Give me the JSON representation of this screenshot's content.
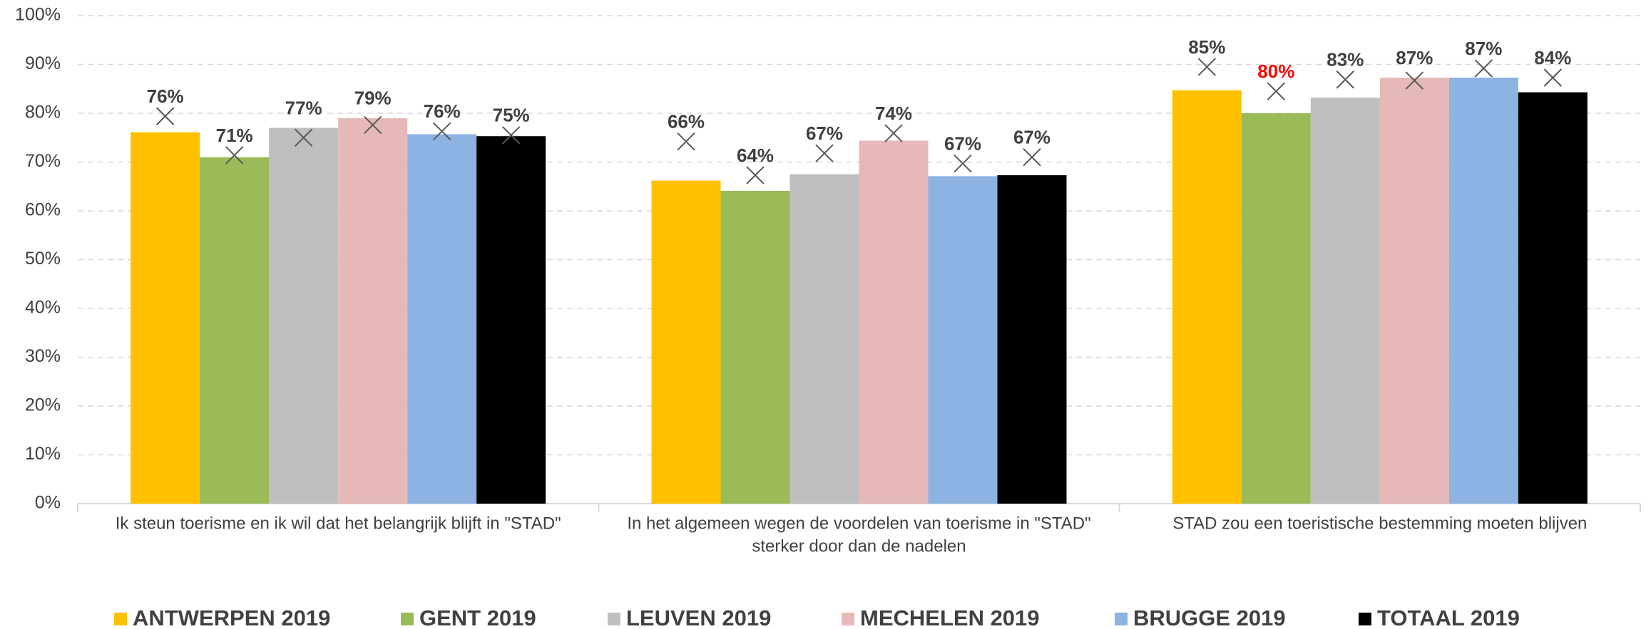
{
  "chart_data": {
    "type": "bar",
    "categories": [
      [
        "Ik steun toerisme en ik wil dat het belangrijk blijft in \"STAD\""
      ],
      [
        "In het algemeen wegen de voordelen van toerisme in \"STAD\"",
        "sterker door dan de nadelen"
      ],
      [
        "STAD zou een toeristische bestemming moeten blijven"
      ]
    ],
    "series": [
      {
        "name": "ANTWERPEN 2019",
        "color": "#ffc000",
        "values": [
          76.1,
          66.2,
          84.7
        ],
        "value_labels": [
          "76%",
          "66%",
          "85%"
        ],
        "label_colors": [
          "#404040",
          "#404040",
          "#404040"
        ],
        "marker_values": [
          79.4,
          74.2,
          89.5
        ]
      },
      {
        "name": "GENT 2019",
        "color": "#9bbb59",
        "values": [
          71,
          64.1,
          80
        ],
        "value_labels": [
          "71%",
          "64%",
          "80%"
        ],
        "label_colors": [
          "#404040",
          "#404040",
          "#ff0000"
        ],
        "marker_values": [
          71.4,
          67.3,
          84.5
        ]
      },
      {
        "name": "LEUVEN 2019",
        "color": "#bfbfbf",
        "values": [
          77,
          67.5,
          83.2
        ],
        "value_labels": [
          "77%",
          "67%",
          "83%"
        ],
        "label_colors": [
          "#404040",
          "#404040",
          "#404040"
        ],
        "marker_values": [
          75,
          71.8,
          86.9
        ]
      },
      {
        "name": "MECHELEN 2019",
        "color": "#e6b9b8",
        "values": [
          79,
          74.4,
          87.3
        ],
        "value_labels": [
          "79%",
          "74%",
          "87%"
        ],
        "label_colors": [
          "#404040",
          "#404040",
          "#404040"
        ],
        "marker_values": [
          77.6,
          75.9,
          86.7
        ]
      },
      {
        "name": "BRUGGE 2019",
        "color": "#8db3e2",
        "values": [
          75.7,
          67.1,
          87.3
        ],
        "value_labels": [
          "76%",
          "67%",
          "87%"
        ],
        "label_colors": [
          "#404040",
          "#404040",
          "#404040"
        ],
        "marker_values": [
          76.3,
          69.7,
          89.2
        ]
      },
      {
        "name": "TOTAAL 2019",
        "color": "#000000",
        "values": [
          75.3,
          67.3,
          84.3
        ],
        "value_labels": [
          "75%",
          "67%",
          "84%"
        ],
        "label_colors": [
          "#404040",
          "#404040",
          "#404040"
        ],
        "marker_values": [
          75.5,
          71,
          87.3
        ]
      }
    ],
    "marker_color": "#595959",
    "ylim": [
      0,
      100
    ],
    "yticks": [
      {
        "value": 0,
        "label": "0%"
      },
      {
        "value": 10,
        "label": "10%"
      },
      {
        "value": 20,
        "label": "20%"
      },
      {
        "value": 30,
        "label": "30%"
      },
      {
        "value": 40,
        "label": "40%"
      },
      {
        "value": 50,
        "label": "50%"
      },
      {
        "value": 60,
        "label": "60%"
      },
      {
        "value": 70,
        "label": "70%"
      },
      {
        "value": 80,
        "label": "80%"
      },
      {
        "value": 90,
        "label": "90%"
      },
      {
        "value": 100,
        "label": "100%"
      }
    ],
    "grid": true,
    "legend": "bottom"
  }
}
